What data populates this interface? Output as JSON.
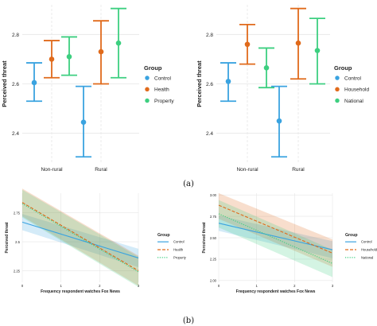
{
  "panel_labels": [
    "(a)",
    "(b)"
  ],
  "colors": {
    "blue": "#3aa3e0",
    "orange": "#e06a1b",
    "green": "#3dcf80",
    "grid": "#e6e6e6",
    "text": "#222222"
  },
  "chart_data": [
    {
      "type": "scatter",
      "subtype": "point-range",
      "ylabel": "Perceived threat",
      "xlabel": "",
      "categories": [
        "Non-rural",
        "Rural"
      ],
      "ylim": [
        2.28,
        2.92
      ],
      "yticks": [
        2.4,
        2.6,
        2.8
      ],
      "grid": true,
      "legend_title": "Group",
      "legend_position": "right",
      "series": [
        {
          "name": "Control",
          "color": "#3aa3e0",
          "est": [
            2.605,
            2.445
          ],
          "lo": [
            2.53,
            2.305
          ],
          "hi": [
            2.685,
            2.59
          ]
        },
        {
          "name": "Health",
          "color": "#e06a1b",
          "est": [
            2.7,
            2.73
          ],
          "lo": [
            2.625,
            2.6
          ],
          "hi": [
            2.775,
            2.855
          ]
        },
        {
          "name": "Property",
          "color": "#3dcf80",
          "est": [
            2.71,
            2.765
          ],
          "lo": [
            2.635,
            2.625
          ],
          "hi": [
            2.79,
            2.905
          ]
        }
      ]
    },
    {
      "type": "scatter",
      "subtype": "point-range",
      "ylabel": "Perceived threat",
      "xlabel": "",
      "categories": [
        "Non-rural",
        "Rural"
      ],
      "ylim": [
        2.28,
        2.92
      ],
      "yticks": [
        2.4,
        2.6,
        2.8
      ],
      "grid": true,
      "legend_title": "Group",
      "legend_position": "right",
      "series": [
        {
          "name": "Control",
          "color": "#3aa3e0",
          "est": [
            2.61,
            2.45
          ],
          "lo": [
            2.53,
            2.305
          ],
          "hi": [
            2.685,
            2.59
          ]
        },
        {
          "name": "Household",
          "color": "#e06a1b",
          "est": [
            2.76,
            2.765
          ],
          "lo": [
            2.68,
            2.62
          ],
          "hi": [
            2.84,
            2.905
          ]
        },
        {
          "name": "National",
          "color": "#3dcf80",
          "est": [
            2.665,
            2.735
          ],
          "lo": [
            2.585,
            2.6
          ],
          "hi": [
            2.745,
            2.865
          ]
        }
      ]
    },
    {
      "type": "line",
      "subtype": "regression-with-ci",
      "xlabel": "Frequency respondent watches Fox News",
      "ylabel": "Perceived threat",
      "xlim": [
        0,
        3
      ],
      "xticks": [
        0,
        1,
        2,
        3
      ],
      "ylim": [
        2.15,
        2.92
      ],
      "yticks": [
        2.25,
        2.5,
        2.75
      ],
      "grid": true,
      "legend_title": "Group",
      "legend_position": "right",
      "series": [
        {
          "name": "Control",
          "color": "#3aa3e0",
          "dash": "solid",
          "y0": 2.67,
          "y1": 2.36,
          "lo0": 2.6,
          "hi0": 2.74,
          "lo1": 2.28,
          "hi1": 2.44
        },
        {
          "name": "Health",
          "color": "#e06a1b",
          "dash": "dashed",
          "y0": 2.84,
          "y1": 2.25,
          "lo0": 2.72,
          "hi0": 2.96,
          "lo1": 2.12,
          "hi1": 2.38
        },
        {
          "name": "Property",
          "color": "#3dcf80",
          "dash": "dotted",
          "y0": 2.83,
          "y1": 2.24,
          "lo0": 2.71,
          "hi0": 2.95,
          "lo1": 2.11,
          "hi1": 2.37
        }
      ]
    },
    {
      "type": "line",
      "subtype": "regression-with-ci",
      "xlabel": "Frequency respondent watches Fox News",
      "ylabel": "Perceived threat",
      "xlim": [
        0,
        3
      ],
      "xticks": [
        0,
        1,
        2,
        3
      ],
      "ylim": [
        1.98,
        3.02
      ],
      "yticks": [
        2.0,
        2.25,
        2.5,
        2.75,
        3.0
      ],
      "tick_format": "fixed2",
      "grid": true,
      "legend_title": "Group",
      "legend_position": "right",
      "series": [
        {
          "name": "Control",
          "color": "#3aa3e0",
          "dash": "solid",
          "y0": 2.67,
          "y1": 2.36,
          "lo0": 2.58,
          "hi0": 2.76,
          "lo1": 2.26,
          "hi1": 2.46
        },
        {
          "name": "Household",
          "color": "#e06a1b",
          "dash": "dashed",
          "y0": 2.88,
          "y1": 2.32,
          "lo0": 2.72,
          "hi0": 3.02,
          "lo1": 2.16,
          "hi1": 2.48
        },
        {
          "name": "National",
          "color": "#3dcf80",
          "dash": "dotted",
          "y0": 2.78,
          "y1": 2.2,
          "lo0": 2.62,
          "hi0": 2.94,
          "lo1": 2.04,
          "hi1": 2.36
        }
      ]
    }
  ]
}
